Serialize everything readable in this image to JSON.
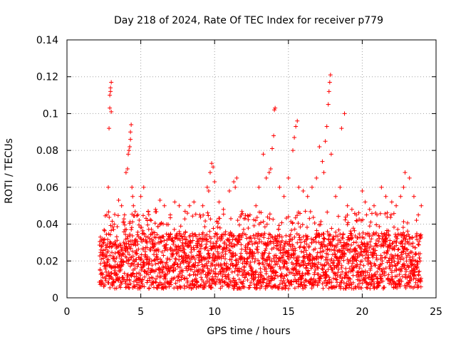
{
  "chart_data": {
    "type": "scatter",
    "title": "Day 218 of 2024, Rate Of TEC Index for receiver p779",
    "xlabel": "GPS time / hours",
    "ylabel": "ROTI / TECUs",
    "xlim": [
      0,
      25
    ],
    "ylim": [
      0,
      0.14
    ],
    "xticks": [
      0,
      5,
      10,
      15,
      20,
      25
    ],
    "xtick_labels": [
      "0",
      "5",
      "10",
      "15",
      "20",
      "25"
    ],
    "yticks": [
      0,
      0.02,
      0.04,
      0.06,
      0.08,
      0.1,
      0.12,
      0.14
    ],
    "ytick_labels": [
      "0",
      "0.02",
      "0.04",
      "0.06",
      "0.08",
      "0.1",
      "0.12",
      "0.14"
    ],
    "grid": true,
    "marker": "+",
    "color": "#ff0000",
    "data_x_range": [
      2.2,
      24.0
    ],
    "baseline_band": [
      0.005,
      0.035
    ],
    "series": [
      {
        "name": "ROTI",
        "x": [
          2.3,
          2.5,
          2.7,
          2.8,
          2.85,
          2.9,
          2.9,
          2.95,
          2.95,
          3.0,
          3.0,
          3.2,
          3.5,
          3.7,
          3.9,
          4.0,
          4.1,
          4.15,
          4.2,
          4.25,
          4.3,
          4.3,
          4.35,
          4.4,
          4.45,
          4.5,
          4.8,
          5.0,
          5.2,
          5.5,
          5.7,
          6.0,
          6.3,
          6.6,
          7.0,
          7.3,
          7.6,
          8.0,
          8.3,
          8.6,
          9.0,
          9.2,
          9.5,
          9.6,
          9.7,
          9.8,
          9.9,
          10.0,
          10.3,
          10.6,
          11.0,
          11.3,
          11.4,
          11.5,
          11.8,
          12.0,
          12.4,
          12.8,
          13.0,
          13.3,
          13.5,
          13.7,
          13.8,
          13.9,
          14.0,
          14.05,
          14.1,
          14.4,
          14.7,
          15.0,
          15.3,
          15.4,
          15.5,
          15.6,
          15.7,
          16.0,
          16.3,
          16.6,
          16.9,
          17.1,
          17.3,
          17.4,
          17.5,
          17.6,
          17.7,
          17.75,
          17.8,
          17.85,
          17.9,
          18.2,
          18.5,
          18.6,
          18.8,
          19.0,
          19.3,
          19.6,
          20.0,
          20.2,
          20.5,
          20.8,
          21.0,
          21.3,
          21.6,
          22.0,
          22.3,
          22.6,
          22.8,
          22.9,
          23.2,
          23.5,
          23.8,
          24.0
        ],
        "y": [
          0.026,
          0.03,
          0.045,
          0.06,
          0.092,
          0.103,
          0.11,
          0.112,
          0.114,
          0.117,
          0.101,
          0.04,
          0.053,
          0.05,
          0.045,
          0.068,
          0.07,
          0.078,
          0.08,
          0.082,
          0.086,
          0.09,
          0.094,
          0.06,
          0.055,
          0.05,
          0.045,
          0.055,
          0.06,
          0.047,
          0.042,
          0.048,
          0.053,
          0.05,
          0.045,
          0.052,
          0.05,
          0.047,
          0.05,
          0.052,
          0.045,
          0.05,
          0.06,
          0.058,
          0.068,
          0.073,
          0.071,
          0.063,
          0.052,
          0.048,
          0.058,
          0.063,
          0.06,
          0.065,
          0.045,
          0.043,
          0.045,
          0.05,
          0.06,
          0.078,
          0.065,
          0.068,
          0.07,
          0.081,
          0.088,
          0.102,
          0.103,
          0.06,
          0.055,
          0.065,
          0.08,
          0.087,
          0.093,
          0.096,
          0.06,
          0.058,
          0.055,
          0.06,
          0.065,
          0.082,
          0.074,
          0.068,
          0.085,
          0.093,
          0.105,
          0.112,
          0.117,
          0.121,
          0.078,
          0.055,
          0.06,
          0.092,
          0.1,
          0.05,
          0.048,
          0.045,
          0.058,
          0.052,
          0.048,
          0.05,
          0.045,
          0.06,
          0.055,
          0.052,
          0.05,
          0.055,
          0.06,
          0.068,
          0.065,
          0.055,
          0.045,
          0.05
        ]
      }
    ]
  }
}
